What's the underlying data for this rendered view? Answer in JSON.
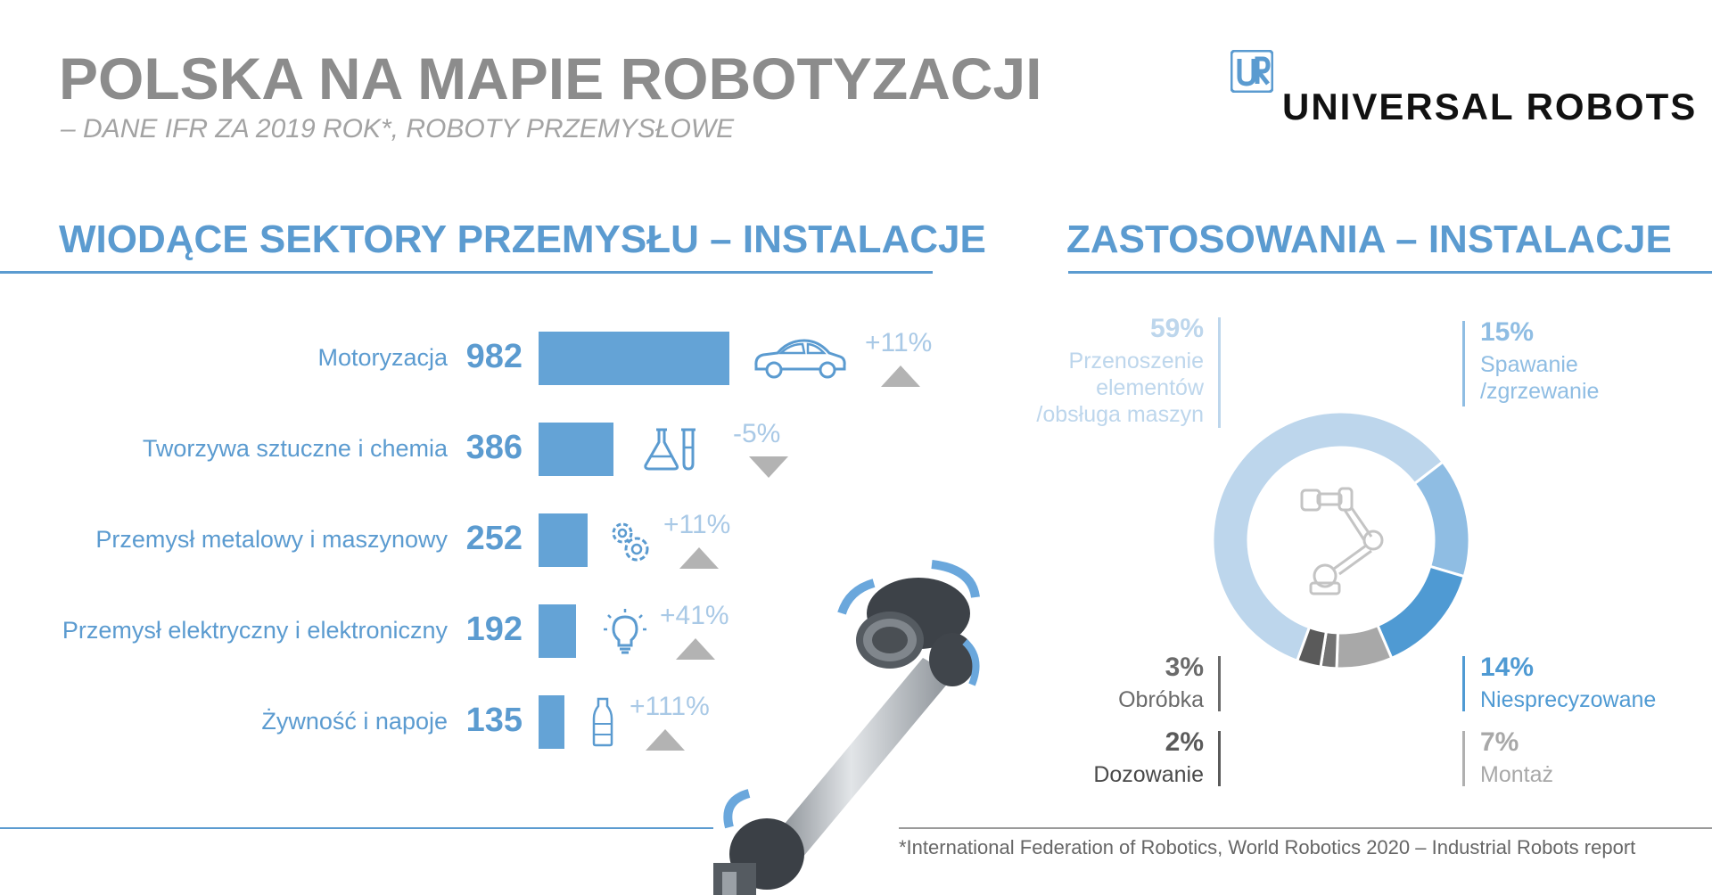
{
  "header": {
    "title": "POLSKA NA MAPIE ROBOTYZACJI",
    "subtitle": "– DANE IFR ZA 2019 ROK*, ROBOTY PRZEMYSŁOWE",
    "logo_text": "UNIVERSAL ROBOTS",
    "logo_mark": "UR"
  },
  "colors": {
    "accent": "#5b9bd0",
    "bar": "#64a3d6",
    "title_gray": "#8c8c8c",
    "triangle": "#b3b3b3"
  },
  "sectors": {
    "title": "WIODĄCE SEKTORY PRZEMYSŁU – INSTALACJE"
  },
  "applications": {
    "title": "ZASTOSOWANIA – INSTALACJE"
  },
  "chart_data": [
    {
      "type": "bar",
      "orientation": "horizontal",
      "title": "WIODĄCE SEKTORY PRZEMYSŁU – INSTALACJE",
      "categories": [
        "Motoryzacja",
        "Tworzywa sztuczne i chemia",
        "Przemysł metalowy i maszynowy",
        "Przemysł elektryczny i elektroniczny",
        "Żywność i napoje"
      ],
      "values": [
        982,
        386,
        252,
        192,
        135
      ],
      "value_labels": [
        "982",
        "386",
        "252",
        "192",
        "135"
      ],
      "changes": [
        "+11%",
        "-5%",
        "+11%",
        "+41%",
        "+111%"
      ],
      "change_direction": [
        "up",
        "down",
        "up",
        "up",
        "up"
      ],
      "icons": [
        "car-icon",
        "lab-flask-icon",
        "gears-icon",
        "light-bulb-icon",
        "bottle-icon"
      ],
      "grid": false
    },
    {
      "type": "pie",
      "style": "donut",
      "title": "ZASTOSOWANIA – INSTALACJE",
      "slices": [
        {
          "label": "Przenoszenie elementów /obsługa maszyn",
          "value": 59,
          "pct_label": "59%",
          "color": "#bdd6ec"
        },
        {
          "label": "Spawanie /zgrzewanie",
          "value": 15,
          "pct_label": "15%",
          "color": "#8fbde3"
        },
        {
          "label": "Niesprecyzowane",
          "value": 14,
          "pct_label": "14%",
          "color": "#4f9ad3"
        },
        {
          "label": "Montaż",
          "value": 7,
          "pct_label": "7%",
          "color": "#a8a8a8"
        },
        {
          "label": "Dozowanie",
          "value": 2,
          "pct_label": "2%",
          "color": "#727272"
        },
        {
          "label": "Obróbka",
          "value": 3,
          "pct_label": "3%",
          "color": "#5a5a5a"
        }
      ],
      "center_icon": "robot-arm-icon"
    }
  ],
  "footnote": "*International Federation of Robotics, World Robotics 2020 – Industrial Robots report"
}
